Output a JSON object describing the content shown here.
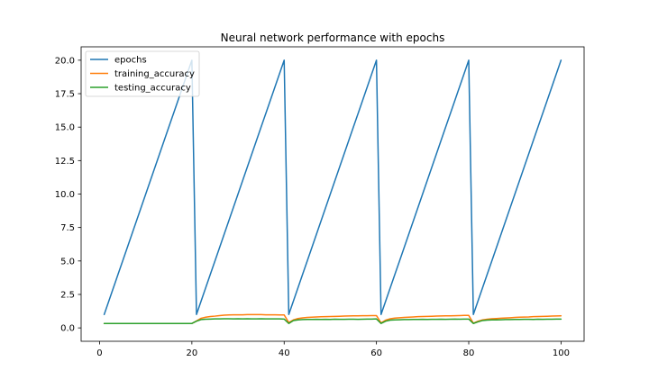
{
  "chart_data": {
    "type": "line",
    "title": "Neural network performance with epochs",
    "xlabel": "",
    "ylabel": "",
    "xlim": [
      -4,
      105
    ],
    "ylim": [
      -1,
      21
    ],
    "grid": false,
    "legend_position": "top-left",
    "x_ticks": [
      0,
      20,
      40,
      60,
      80,
      100
    ],
    "x_tick_labels": [
      "0",
      "20",
      "40",
      "60",
      "80",
      "100"
    ],
    "y_ticks": [
      0,
      2.5,
      5,
      7.5,
      10,
      12.5,
      15,
      17.5,
      20
    ],
    "y_tick_labels": [
      "0.0",
      "2.5",
      "5.0",
      "7.5",
      "10.0",
      "12.5",
      "15.0",
      "17.5",
      "20.0"
    ],
    "x": [
      1,
      2,
      3,
      4,
      5,
      6,
      7,
      8,
      9,
      10,
      11,
      12,
      13,
      14,
      15,
      16,
      17,
      18,
      19,
      20,
      21,
      22,
      23,
      24,
      25,
      26,
      27,
      28,
      29,
      30,
      31,
      32,
      33,
      34,
      35,
      36,
      37,
      38,
      39,
      40,
      41,
      42,
      43,
      44,
      45,
      46,
      47,
      48,
      49,
      50,
      51,
      52,
      53,
      54,
      55,
      56,
      57,
      58,
      59,
      60,
      61,
      62,
      63,
      64,
      65,
      66,
      67,
      68,
      69,
      70,
      71,
      72,
      73,
      74,
      75,
      76,
      77,
      78,
      79,
      80,
      81,
      82,
      83,
      84,
      85,
      86,
      87,
      88,
      89,
      90,
      91,
      92,
      93,
      94,
      95,
      96,
      97,
      98,
      99,
      100
    ],
    "series": [
      {
        "name": "epochs",
        "color": "#1f77b4",
        "values": [
          1,
          2,
          3,
          4,
          5,
          6,
          7,
          8,
          9,
          10,
          11,
          12,
          13,
          14,
          15,
          16,
          17,
          18,
          19,
          20,
          1,
          2,
          3,
          4,
          5,
          6,
          7,
          8,
          9,
          10,
          11,
          12,
          13,
          14,
          15,
          16,
          17,
          18,
          19,
          20,
          1,
          2,
          3,
          4,
          5,
          6,
          7,
          8,
          9,
          10,
          11,
          12,
          13,
          14,
          15,
          16,
          17,
          18,
          19,
          20,
          1,
          2,
          3,
          4,
          5,
          6,
          7,
          8,
          9,
          10,
          11,
          12,
          13,
          14,
          15,
          16,
          17,
          18,
          19,
          20,
          1,
          2,
          3,
          4,
          5,
          6,
          7,
          8,
          9,
          10,
          11,
          12,
          13,
          14,
          15,
          16,
          17,
          18,
          19,
          20
        ]
      },
      {
        "name": "training_accuracy",
        "color": "#ff7f0e",
        "values": [
          0.33,
          0.33,
          0.33,
          0.33,
          0.33,
          0.33,
          0.33,
          0.33,
          0.33,
          0.33,
          0.33,
          0.33,
          0.33,
          0.33,
          0.33,
          0.33,
          0.33,
          0.33,
          0.33,
          0.33,
          0.52,
          0.72,
          0.8,
          0.85,
          0.88,
          0.92,
          0.95,
          0.97,
          0.98,
          0.98,
          0.98,
          0.99,
          0.99,
          0.99,
          0.99,
          0.98,
          0.98,
          0.98,
          0.97,
          0.97,
          0.4,
          0.6,
          0.7,
          0.75,
          0.78,
          0.8,
          0.82,
          0.83,
          0.84,
          0.85,
          0.86,
          0.87,
          0.88,
          0.89,
          0.9,
          0.9,
          0.91,
          0.91,
          0.92,
          0.92,
          0.38,
          0.58,
          0.68,
          0.73,
          0.76,
          0.78,
          0.8,
          0.82,
          0.84,
          0.85,
          0.86,
          0.87,
          0.88,
          0.89,
          0.9,
          0.9,
          0.91,
          0.92,
          0.93,
          0.93,
          0.35,
          0.5,
          0.6,
          0.65,
          0.68,
          0.7,
          0.72,
          0.74,
          0.76,
          0.78,
          0.8,
          0.81,
          0.82,
          0.84,
          0.85,
          0.86,
          0.87,
          0.88,
          0.89,
          0.9
        ]
      },
      {
        "name": "testing_accuracy",
        "color": "#2ca02c",
        "values": [
          0.33,
          0.33,
          0.33,
          0.33,
          0.33,
          0.33,
          0.33,
          0.33,
          0.33,
          0.33,
          0.33,
          0.33,
          0.33,
          0.33,
          0.33,
          0.33,
          0.33,
          0.33,
          0.33,
          0.33,
          0.5,
          0.62,
          0.65,
          0.66,
          0.67,
          0.67,
          0.68,
          0.68,
          0.67,
          0.68,
          0.67,
          0.68,
          0.67,
          0.67,
          0.68,
          0.67,
          0.67,
          0.67,
          0.67,
          0.66,
          0.33,
          0.55,
          0.6,
          0.62,
          0.63,
          0.63,
          0.64,
          0.63,
          0.64,
          0.63,
          0.65,
          0.64,
          0.64,
          0.65,
          0.65,
          0.64,
          0.65,
          0.66,
          0.66,
          0.67,
          0.33,
          0.5,
          0.58,
          0.6,
          0.61,
          0.62,
          0.62,
          0.63,
          0.63,
          0.64,
          0.63,
          0.64,
          0.64,
          0.65,
          0.64,
          0.65,
          0.66,
          0.65,
          0.66,
          0.66,
          0.33,
          0.45,
          0.55,
          0.58,
          0.6,
          0.6,
          0.61,
          0.62,
          0.62,
          0.63,
          0.63,
          0.64,
          0.64,
          0.63,
          0.65,
          0.64,
          0.65,
          0.65,
          0.66,
          0.66
        ]
      }
    ]
  }
}
